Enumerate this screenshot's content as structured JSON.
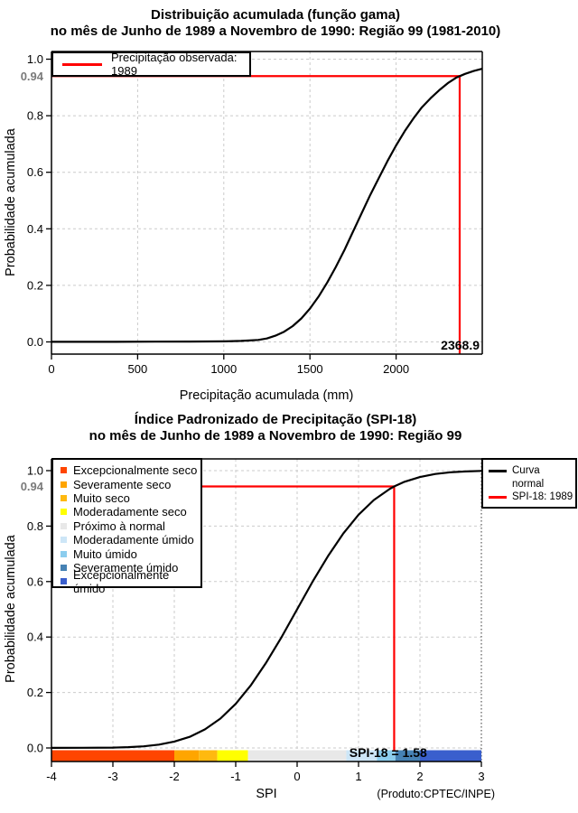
{
  "colors": {
    "marker_red": "#FF0000",
    "curve_black": "#000000",
    "grid_gray": "#CBCBCB",
    "grid_dark": "#333333",
    "gray_axis_label": "#7A7A7A"
  },
  "chart_data": [
    {
      "type": "line",
      "title_line1": "Distribuição acumulada (função gama)",
      "title_line2": "no mês de Junho de 1989 a Novembro de 1990: Região 99 (1981-2010)",
      "xlabel": "Precipitação acumulada (mm)",
      "ylabel": "Probabilidade acumulada",
      "x_range": [
        0,
        2500
      ],
      "y_range": [
        0,
        1
      ],
      "x_ticks": [
        0,
        500,
        1000,
        1500,
        2000
      ],
      "x_tick_labels": [
        "0",
        "500",
        "1000",
        "1500",
        "2000"
      ],
      "y_ticks": [
        0,
        0.2,
        0.4,
        0.6,
        0.8,
        1.0
      ],
      "y_tick_labels": [
        "0.0",
        "0.2",
        "0.4",
        "0.6",
        "0.8",
        "1.0"
      ],
      "grid": "on",
      "legend_position": "top-left",
      "legend": [
        {
          "label": "Precipitação observada: 1989",
          "color": "#FF0000",
          "type": "line"
        }
      ],
      "marker": {
        "x": 2368.9,
        "y": 0.94,
        "x_label": "2368.9",
        "y_label": "0.94",
        "color": "#FF0000",
        "y_label_color": "#7A7A7A"
      },
      "series": [
        {
          "name": "gamma-cdf",
          "color": "#000000",
          "points": [
            [
              0,
              0.0003
            ],
            [
              300,
              0.0004
            ],
            [
              600,
              0.0008
            ],
            [
              800,
              0.0012
            ],
            [
              1000,
              0.002
            ],
            [
              1100,
              0.0035
            ],
            [
              1150,
              0.005
            ],
            [
              1200,
              0.007
            ],
            [
              1250,
              0.012
            ],
            [
              1300,
              0.022
            ],
            [
              1350,
              0.036
            ],
            [
              1400,
              0.056
            ],
            [
              1450,
              0.083
            ],
            [
              1500,
              0.118
            ],
            [
              1550,
              0.16
            ],
            [
              1600,
              0.21
            ],
            [
              1650,
              0.265
            ],
            [
              1700,
              0.325
            ],
            [
              1750,
              0.39
            ],
            [
              1800,
              0.455
            ],
            [
              1850,
              0.52
            ],
            [
              1900,
              0.58
            ],
            [
              1950,
              0.64
            ],
            [
              2000,
              0.695
            ],
            [
              2050,
              0.745
            ],
            [
              2100,
              0.79
            ],
            [
              2150,
              0.83
            ],
            [
              2200,
              0.862
            ],
            [
              2250,
              0.89
            ],
            [
              2300,
              0.915
            ],
            [
              2350,
              0.935
            ],
            [
              2368.9,
              0.94
            ],
            [
              2400,
              0.948
            ],
            [
              2450,
              0.958
            ],
            [
              2500,
              0.966
            ]
          ]
        }
      ]
    },
    {
      "type": "line",
      "title_line1": "Índice Padronizado de Precipitação (SPI-18)",
      "title_line2": "no mês de Junho de 1989 a Novembro de 1990: Região 99",
      "xlabel": "SPI",
      "ylabel": "Probabilidade acumulada",
      "footer": "(Produto:CPTEC/INPE)",
      "x_range": [
        -4,
        3
      ],
      "y_range": [
        0,
        1
      ],
      "x_ticks": [
        -4,
        -3,
        -2,
        -1,
        0,
        1,
        2,
        3
      ],
      "x_tick_labels": [
        "-4",
        "-3",
        "-2",
        "-1",
        "0",
        "1",
        "2",
        "3"
      ],
      "y_ticks": [
        0,
        0.2,
        0.4,
        0.6,
        0.8,
        1.0
      ],
      "y_tick_labels": [
        "0.0",
        "0.2",
        "0.4",
        "0.6",
        "0.8",
        "1.0"
      ],
      "grid": "on",
      "legend_position": "top-left",
      "categories_legend": [
        {
          "label": "Excepcionalmente seco",
          "color": "#FF4500"
        },
        {
          "label": "Severamente seco",
          "color": "#FFA500"
        },
        {
          "label": "Muito seco",
          "color": "#FFB90F"
        },
        {
          "label": "Moderadamente seco",
          "color": "#FFFF00"
        },
        {
          "label": "Próximo à normal",
          "color": "#E8E8E8"
        },
        {
          "label": "Moderadamente úmido",
          "color": "#CDE6F7"
        },
        {
          "label": "Muito úmido",
          "color": "#8CCDEE"
        },
        {
          "label": "Severamente úmido",
          "color": "#4682B4"
        },
        {
          "label": "Excepcionalmente úmido",
          "color": "#3A5FCD"
        }
      ],
      "right_legend": [
        {
          "lines": [
            "Curva",
            "normal"
          ],
          "color": "#000000"
        },
        {
          "lines": [
            "SPI-18: 1989"
          ],
          "color": "#FF0000"
        }
      ],
      "marker": {
        "x": 1.58,
        "y": 0.943,
        "y_label": "0.94",
        "annotation": "SPI-18 = 1.58",
        "color": "#FF0000",
        "y_label_color": "#7A7A7A"
      },
      "colorbar": [
        {
          "from": -4,
          "to": -2,
          "color": "#FF4500",
          "category": "Excepcionalmente seco"
        },
        {
          "from": -2,
          "to": -1.6,
          "color": "#FFA500",
          "category": "Severamente seco"
        },
        {
          "from": -1.6,
          "to": -1.3,
          "color": "#FFB90F",
          "category": "Muito seco"
        },
        {
          "from": -1.3,
          "to": -0.8,
          "color": "#FFFF00",
          "category": "Moderadamente seco"
        },
        {
          "from": -0.8,
          "to": 0.8,
          "color": "#E8E8E8",
          "category": "Próximo à normal"
        },
        {
          "from": 0.8,
          "to": 1.3,
          "color": "#CDE6F7",
          "category": "Moderadamente úmido"
        },
        {
          "from": 1.3,
          "to": 1.6,
          "color": "#8CCDEE",
          "category": "Muito úmido"
        },
        {
          "from": 1.6,
          "to": 2,
          "color": "#4682B4",
          "category": "Severamente úmido"
        },
        {
          "from": 2,
          "to": 3,
          "color": "#3A5FCD",
          "category": "Excepcionalmente úmido"
        }
      ],
      "series": [
        {
          "name": "normal-cdf",
          "color": "#000000",
          "points": [
            [
              -4,
              0.0003
            ],
            [
              -3.5,
              0.0008
            ],
            [
              -3,
              0.0013
            ],
            [
              -2.75,
              0.003
            ],
            [
              -2.5,
              0.006
            ],
            [
              -2.25,
              0.012
            ],
            [
              -2,
              0.023
            ],
            [
              -1.75,
              0.04
            ],
            [
              -1.5,
              0.067
            ],
            [
              -1.25,
              0.106
            ],
            [
              -1,
              0.159
            ],
            [
              -0.75,
              0.227
            ],
            [
              -0.5,
              0.309
            ],
            [
              -0.25,
              0.401
            ],
            [
              0,
              0.5
            ],
            [
              0.25,
              0.599
            ],
            [
              0.5,
              0.691
            ],
            [
              0.75,
              0.773
            ],
            [
              1,
              0.841
            ],
            [
              1.25,
              0.894
            ],
            [
              1.5,
              0.933
            ],
            [
              1.58,
              0.943
            ],
            [
              1.75,
              0.96
            ],
            [
              2,
              0.977
            ],
            [
              2.25,
              0.988
            ],
            [
              2.5,
              0.994
            ],
            [
              2.75,
              0.997
            ],
            [
              3,
              0.999
            ]
          ]
        }
      ]
    }
  ]
}
